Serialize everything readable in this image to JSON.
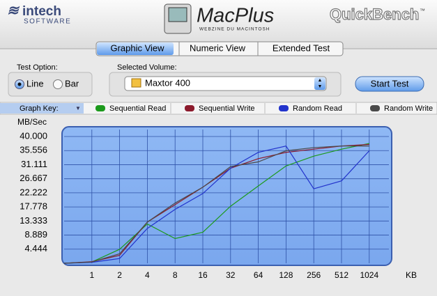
{
  "ui": {
    "brand_left": "intech",
    "brand_left_sub": "SOFTWARE",
    "brand_center": "MacPlus",
    "brand_center_sub": "WEBZINE DU MACINTOSH",
    "brand_right": "QuickBench",
    "brand_right_mark": "™",
    "tabs": [
      "Graphic View",
      "Numeric View",
      "Extended Test"
    ],
    "test_option_label": "Test Option:",
    "options": [
      "Line",
      "Bar"
    ],
    "volume_label": "Selected Volume:",
    "volume": "Maxtor 400",
    "start_button": "Start Test",
    "graph_key": "Graph Key:"
  },
  "chart_data": {
    "type": "line",
    "y_label": "MB/Sec",
    "x_label": "KB",
    "categories": [
      null,
      "1",
      "2",
      "4",
      "8",
      "16",
      "32",
      "64",
      "128",
      "256",
      "512",
      "1024"
    ],
    "series": [
      {
        "name": "Sequential Read",
        "color": "#1c9a1c",
        "values": [
          0,
          0.4,
          4.4,
          12.4,
          7.8,
          9.8,
          18,
          24.4,
          30.7,
          33.8,
          36,
          37.8
        ]
      },
      {
        "name": "Sequential Write",
        "color": "#8c1a2c",
        "values": [
          0,
          0.5,
          2.5,
          13,
          18.5,
          24,
          30,
          33,
          35,
          36,
          37,
          37.5
        ]
      },
      {
        "name": "Random Read",
        "color": "#2233cc",
        "values": [
          0,
          0.3,
          1.5,
          11,
          17,
          22,
          30,
          35,
          37,
          23.5,
          26,
          35.5
        ]
      },
      {
        "name": "Random Write",
        "color": "#4a4a4a",
        "values": [
          0,
          0.4,
          3,
          13,
          19,
          24,
          30.5,
          32,
          35.5,
          36.5,
          37,
          37
        ]
      }
    ],
    "ylim": [
      0,
      40
    ],
    "yticks": [
      4.444,
      8.889,
      13.333,
      17.778,
      22.222,
      26.667,
      31.111,
      35.556,
      {
        "value": 40,
        "label": "40.000"
      }
    ],
    "grid": true
  }
}
